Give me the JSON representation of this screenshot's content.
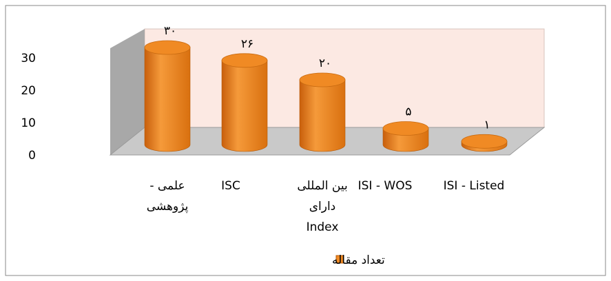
{
  "chart_data": {
    "type": "bar3d",
    "categories": [
      "علمی - پژوهشی",
      "ISC",
      "بین المللی دارای Index",
      "ISI - WOS",
      "ISI - Listed"
    ],
    "series": [
      {
        "name": "تعداد مقاله",
        "color": "#f08a24",
        "values": [
          30,
          26,
          20,
          5,
          1
        ],
        "value_labels": [
          "۳۰",
          "۲۶",
          "۲۰",
          "۵",
          "۱"
        ]
      }
    ],
    "ylim": [
      0,
      30
    ],
    "yticks": [
      0,
      10,
      20,
      30
    ],
    "grid": false,
    "legend": "bottom"
  }
}
